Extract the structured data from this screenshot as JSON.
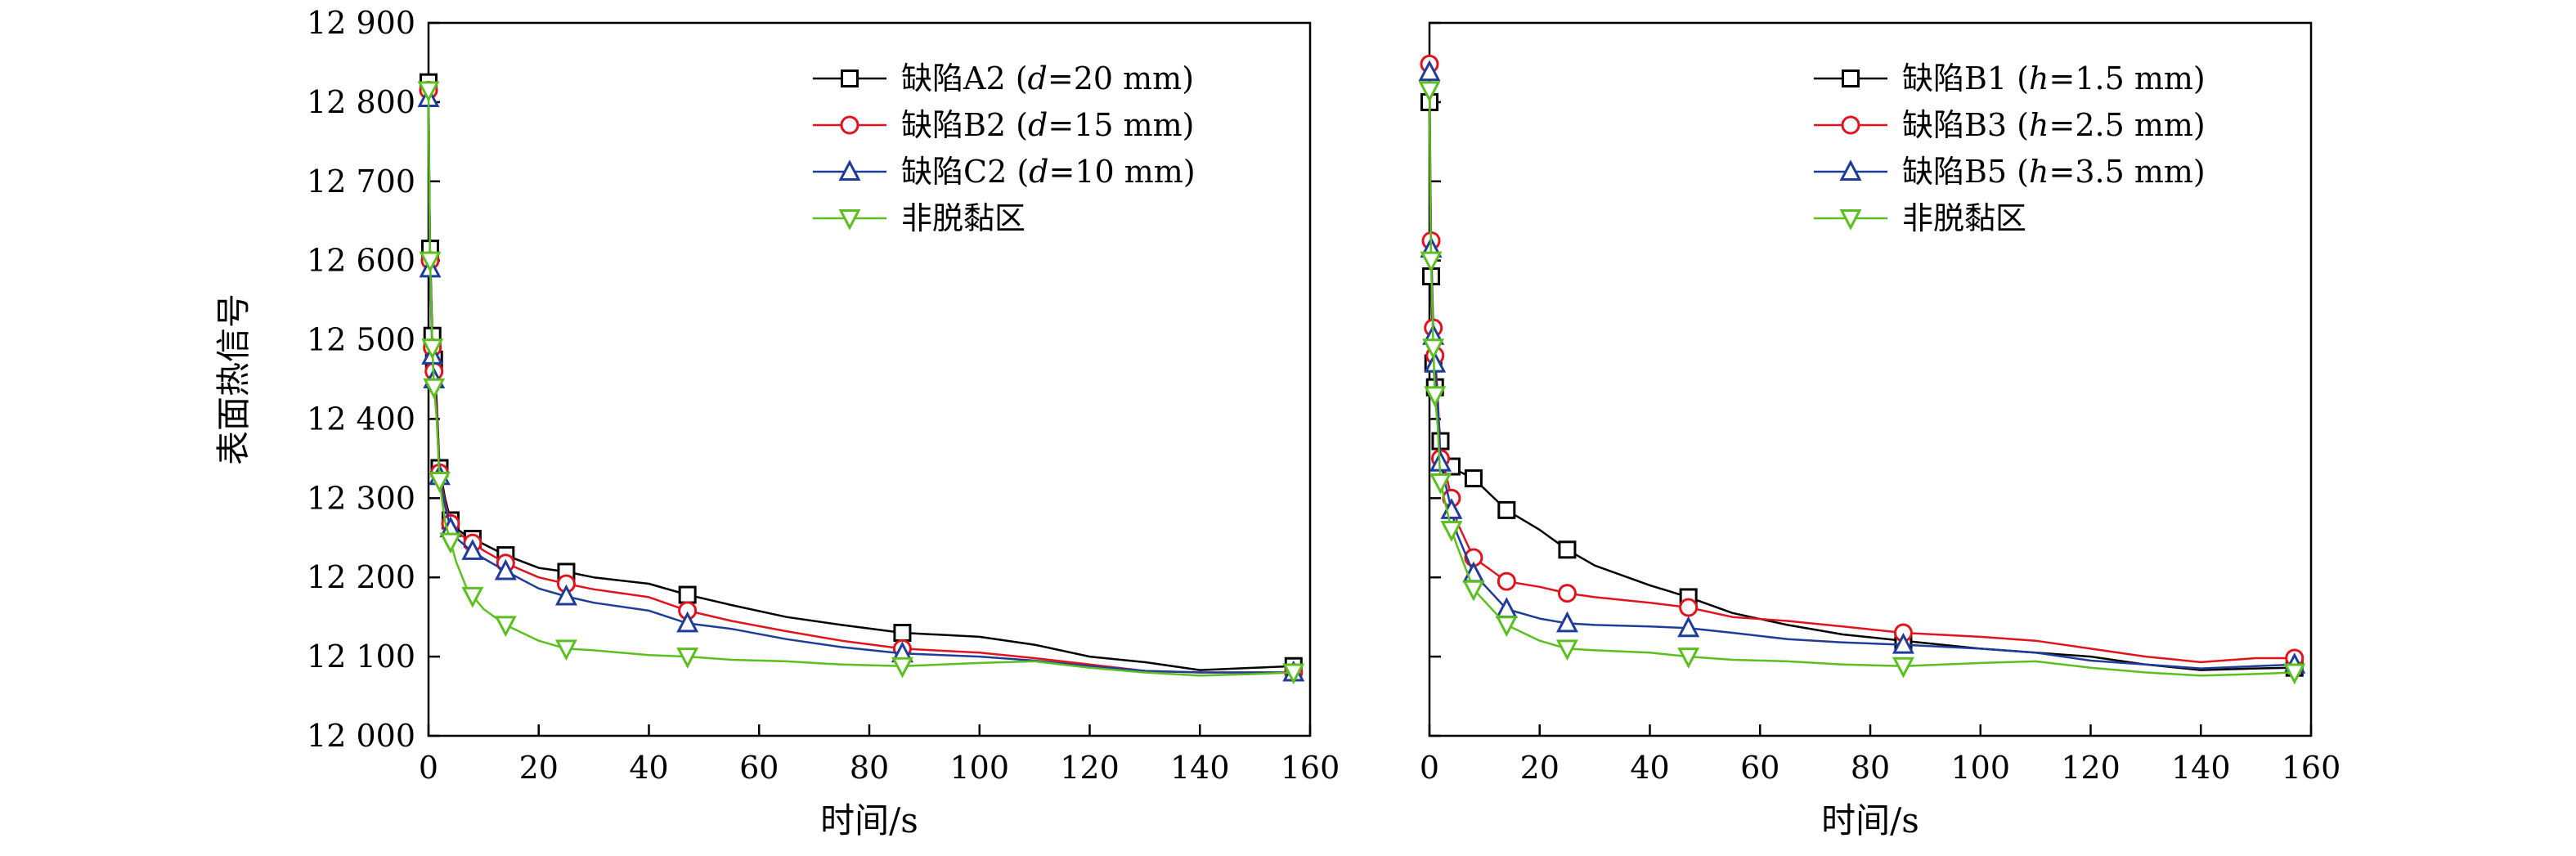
{
  "colors": {
    "A2": "#000000",
    "B1": "#000000",
    "B2": "#e0141e",
    "B3": "#e0141e",
    "C2": "#1f3c99",
    "B5": "#1f3c99",
    "normal": "#5bbf1f"
  },
  "chart_data": [
    {
      "type": "line",
      "xlabel": "时间/s",
      "ylabel": "表面热信号",
      "xlim": [
        0,
        160
      ],
      "ylim": [
        12000,
        12900
      ],
      "x_ticks": [
        "0",
        "20",
        "40",
        "60",
        "80",
        "100",
        "120",
        "140",
        "160"
      ],
      "y_ticks": [
        "12 000",
        "12 100",
        "12 200",
        "12 300",
        "12 400",
        "12 500",
        "12 600",
        "12 700",
        "12 800",
        "12 900"
      ],
      "show_y_tick_labels": true,
      "legend_position": "top-right",
      "series": [
        {
          "name": "缺陷A2 (d=20 mm)",
          "legend": {
            "prefix": "缺陷A2 (",
            "italic": "d",
            "suffix": "=20 mm)"
          },
          "marker": "square",
          "color_key": "A2",
          "x": [
            0,
            0.15,
            0.3,
            0.5,
            0.7,
            1,
            1.5,
            2,
            3,
            4,
            5,
            7,
            10,
            14,
            20,
            25,
            30,
            40,
            47,
            55,
            65,
            75,
            86,
            100,
            110,
            120,
            130,
            140,
            150,
            157
          ],
          "y": [
            12825,
            12695,
            12615,
            12555,
            12505,
            12475,
            12420,
            12338,
            12300,
            12272,
            12262,
            12252,
            12242,
            12228,
            12212,
            12207,
            12200,
            12192,
            12178,
            12165,
            12150,
            12140,
            12130,
            12125,
            12115,
            12100,
            12093,
            12083,
            12086,
            12088
          ],
          "marker_x": [
            0,
            0.3,
            0.7,
            1,
            2,
            4,
            8,
            14,
            25,
            47,
            86,
            157
          ]
        },
        {
          "name": "缺陷B2 (d=15 mm)",
          "legend": {
            "prefix": "缺陷B2 (",
            "italic": "d",
            "suffix": "=15 mm)"
          },
          "marker": "circle",
          "color_key": "B2",
          "x": [
            0,
            0.15,
            0.3,
            0.5,
            0.7,
            1,
            1.5,
            2,
            3,
            4,
            5,
            7,
            10,
            14,
            20,
            25,
            30,
            40,
            47,
            55,
            65,
            75,
            86,
            100,
            110,
            120,
            130,
            140,
            150,
            157
          ],
          "y": [
            12815,
            12685,
            12600,
            12540,
            12490,
            12460,
            12410,
            12332,
            12295,
            12268,
            12258,
            12248,
            12234,
            12218,
            12200,
            12192,
            12185,
            12175,
            12158,
            12145,
            12132,
            12120,
            12110,
            12105,
            12098,
            12090,
            12082,
            12080,
            12080,
            12080
          ],
          "marker_x": [
            0,
            0.3,
            0.7,
            1,
            2,
            4,
            8,
            14,
            25,
            47,
            86,
            157
          ]
        },
        {
          "name": "缺陷C2 (d=10 mm)",
          "legend": {
            "prefix": "缺陷C2 (",
            "italic": "d",
            "suffix": "=10 mm)"
          },
          "marker": "triangle-up",
          "color_key": "C2",
          "x": [
            0,
            0.15,
            0.3,
            0.5,
            0.7,
            1,
            1.5,
            2,
            3,
            4,
            5,
            7,
            10,
            14,
            20,
            25,
            30,
            40,
            47,
            55,
            65,
            75,
            86,
            100,
            110,
            120,
            130,
            140,
            150,
            157
          ],
          "y": [
            12805,
            12675,
            12590,
            12530,
            12480,
            12450,
            12400,
            12328,
            12290,
            12262,
            12250,
            12238,
            12224,
            12208,
            12186,
            12176,
            12168,
            12158,
            12142,
            12135,
            12122,
            12112,
            12104,
            12100,
            12095,
            12088,
            12082,
            12080,
            12080,
            12080
          ],
          "marker_x": [
            0,
            0.3,
            0.7,
            1,
            2,
            4,
            8,
            14,
            25,
            47,
            86,
            157
          ]
        },
        {
          "name": "非脱黏区",
          "legend": {
            "prefix": "非脱黏区",
            "italic": "",
            "suffix": ""
          },
          "marker": "triangle-down",
          "color_key": "normal",
          "x": [
            0,
            0.15,
            0.3,
            0.5,
            0.7,
            1,
            1.5,
            2,
            3,
            4,
            5,
            7,
            10,
            14,
            20,
            25,
            30,
            40,
            47,
            55,
            65,
            75,
            86,
            100,
            110,
            120,
            130,
            140,
            150,
            157
          ],
          "y": [
            12815,
            12680,
            12600,
            12540,
            12490,
            12440,
            12400,
            12322,
            12270,
            12245,
            12220,
            12185,
            12160,
            12140,
            12120,
            12110,
            12108,
            12102,
            12100,
            12096,
            12094,
            12090,
            12088,
            12092,
            12094,
            12086,
            12080,
            12076,
            12078,
            12080
          ],
          "marker_x": [
            0,
            0.3,
            0.7,
            1,
            2,
            4,
            8,
            14,
            25,
            47,
            86,
            157
          ]
        }
      ]
    },
    {
      "type": "line",
      "xlabel": "时间/s",
      "ylabel": "",
      "xlim": [
        0,
        160
      ],
      "ylim": [
        12000,
        12900
      ],
      "x_ticks": [
        "0",
        "20",
        "40",
        "60",
        "80",
        "100",
        "120",
        "140",
        "160"
      ],
      "y_ticks": [
        "12 000",
        "12 100",
        "12 200",
        "12 300",
        "12 400",
        "12 500",
        "12 600",
        "12 700",
        "12 800",
        "12 900"
      ],
      "show_y_tick_labels": false,
      "legend_position": "top-right",
      "series": [
        {
          "name": "缺陷B1 (h=1.5 mm)",
          "legend": {
            "prefix": "缺陷B1 (",
            "italic": "h",
            "suffix": "=1.5 mm)"
          },
          "marker": "square",
          "color_key": "B1",
          "x": [
            0,
            0.15,
            0.3,
            0.5,
            0.7,
            1,
            1.5,
            2,
            3,
            4,
            5,
            8,
            14,
            20,
            25,
            30,
            40,
            47,
            55,
            65,
            75,
            86,
            100,
            110,
            120,
            130,
            140,
            150,
            157
          ],
          "y": [
            12800,
            12670,
            12580,
            12520,
            12470,
            12440,
            12410,
            12372,
            12345,
            12340,
            12335,
            12325,
            12285,
            12260,
            12235,
            12215,
            12190,
            12175,
            12155,
            12140,
            12128,
            12120,
            12110,
            12105,
            12100,
            12090,
            12083,
            12085,
            12086
          ],
          "marker_x": [
            0,
            0.3,
            0.7,
            1,
            2,
            4,
            8,
            14,
            25,
            47,
            86,
            157
          ]
        },
        {
          "name": "缺陷B3 (h=2.5 mm)",
          "legend": {
            "prefix": "缺陷B3 (",
            "italic": "h",
            "suffix": "=2.5 mm)"
          },
          "marker": "circle",
          "color_key": "B3",
          "x": [
            0,
            0.15,
            0.3,
            0.5,
            0.7,
            1,
            1.5,
            2,
            3,
            4,
            5,
            8,
            14,
            20,
            25,
            30,
            40,
            47,
            55,
            65,
            75,
            86,
            100,
            110,
            120,
            130,
            140,
            150,
            157
          ],
          "y": [
            12848,
            12715,
            12625,
            12565,
            12515,
            12480,
            12430,
            12350,
            12330,
            12300,
            12270,
            12225,
            12195,
            12188,
            12180,
            12175,
            12168,
            12162,
            12150,
            12145,
            12138,
            12130,
            12125,
            12120,
            12110,
            12100,
            12093,
            12098,
            12098
          ],
          "marker_x": [
            0,
            0.3,
            0.7,
            1,
            2,
            4,
            8,
            14,
            25,
            47,
            86,
            157
          ]
        },
        {
          "name": "缺陷B5 (h=3.5 mm)",
          "legend": {
            "prefix": "缺陷B5 (",
            "italic": "h",
            "suffix": "=3.5 mm)"
          },
          "marker": "triangle-up",
          "color_key": "B5",
          "x": [
            0,
            0.15,
            0.3,
            0.5,
            0.7,
            1,
            1.5,
            2,
            3,
            4,
            5,
            8,
            14,
            20,
            25,
            30,
            40,
            47,
            55,
            65,
            75,
            86,
            100,
            110,
            120,
            130,
            140,
            150,
            157
          ],
          "y": [
            12838,
            12705,
            12615,
            12555,
            12505,
            12470,
            12420,
            12345,
            12315,
            12285,
            12255,
            12205,
            12160,
            12148,
            12142,
            12140,
            12138,
            12136,
            12130,
            12122,
            12118,
            12115,
            12110,
            12105,
            12095,
            12090,
            12085,
            12088,
            12090
          ],
          "marker_x": [
            0,
            0.3,
            0.7,
            1,
            2,
            4,
            8,
            14,
            25,
            47,
            86,
            157
          ]
        },
        {
          "name": "非脱黏区",
          "legend": {
            "prefix": "非脱黏区",
            "italic": "",
            "suffix": ""
          },
          "marker": "triangle-down",
          "color_key": "normal",
          "x": [
            0,
            0.15,
            0.3,
            0.5,
            0.7,
            1,
            1.5,
            2,
            3,
            4,
            5,
            8,
            14,
            20,
            25,
            30,
            40,
            47,
            55,
            65,
            75,
            86,
            100,
            110,
            120,
            130,
            140,
            150,
            157
          ],
          "y": [
            12815,
            12680,
            12600,
            12540,
            12490,
            12430,
            12390,
            12320,
            12290,
            12260,
            12240,
            12185,
            12140,
            12120,
            12110,
            12108,
            12105,
            12100,
            12096,
            12094,
            12090,
            12088,
            12092,
            12094,
            12086,
            12080,
            12076,
            12078,
            12080
          ],
          "marker_x": [
            0,
            0.3,
            0.7,
            1,
            2,
            4,
            8,
            14,
            25,
            47,
            86,
            157
          ]
        }
      ]
    }
  ]
}
